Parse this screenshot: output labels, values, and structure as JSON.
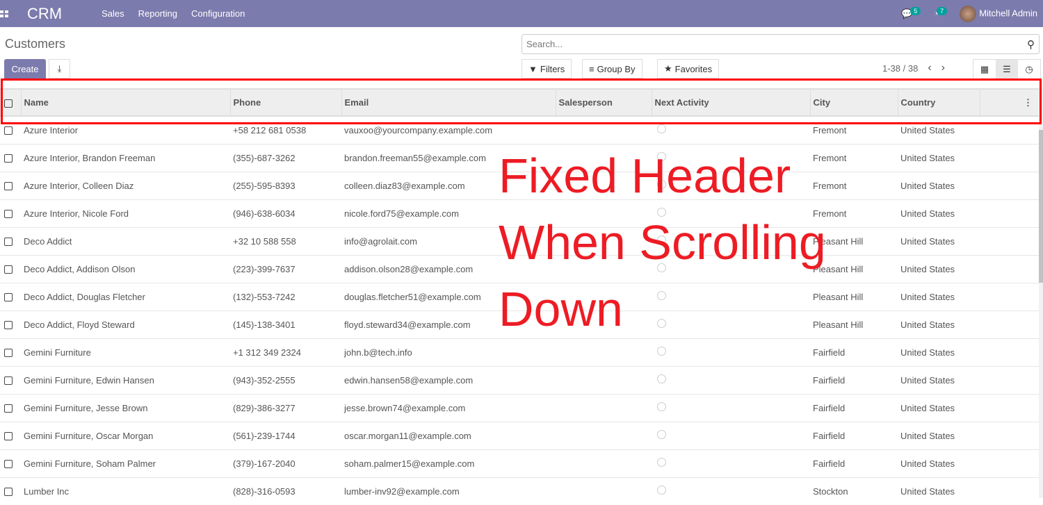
{
  "nav": {
    "brand": "CRM",
    "menu": [
      "Sales",
      "Reporting",
      "Configuration"
    ],
    "messages_count": "5",
    "activities_count": "7",
    "user": "Mitchell Admin"
  },
  "page": {
    "title": "Customers",
    "create": "Create",
    "search_placeholder": "Search...",
    "filters": "Filters",
    "group_by": "Group By",
    "favorites": "Favorites",
    "pager": "1-38 / 38"
  },
  "columns": [
    "Name",
    "Phone",
    "Email",
    "Salesperson",
    "Next Activity",
    "City",
    "Country"
  ],
  "rows": [
    [
      "Azure Interior",
      "+58 212 681 0538",
      "vauxoo@yourcompany.example.com",
      "",
      "",
      "Fremont",
      "United States"
    ],
    [
      "Azure Interior, Brandon Freeman",
      "(355)-687-3262",
      "brandon.freeman55@example.com",
      "",
      "",
      "Fremont",
      "United States"
    ],
    [
      "Azure Interior, Colleen Diaz",
      "(255)-595-8393",
      "colleen.diaz83@example.com",
      "",
      "",
      "Fremont",
      "United States"
    ],
    [
      "Azure Interior, Nicole Ford",
      "(946)-638-6034",
      "nicole.ford75@example.com",
      "",
      "",
      "Fremont",
      "United States"
    ],
    [
      "Deco Addict",
      "+32 10 588 558",
      "info@agrolait.com",
      "",
      "",
      "Pleasant Hill",
      "United States"
    ],
    [
      "Deco Addict, Addison Olson",
      "(223)-399-7637",
      "addison.olson28@example.com",
      "",
      "",
      "Pleasant Hill",
      "United States"
    ],
    [
      "Deco Addict, Douglas Fletcher",
      "(132)-553-7242",
      "douglas.fletcher51@example.com",
      "",
      "",
      "Pleasant Hill",
      "United States"
    ],
    [
      "Deco Addict, Floyd Steward",
      "(145)-138-3401",
      "floyd.steward34@example.com",
      "",
      "",
      "Pleasant Hill",
      "United States"
    ],
    [
      "Gemini Furniture",
      "+1 312 349 2324",
      "john.b@tech.info",
      "",
      "",
      "Fairfield",
      "United States"
    ],
    [
      "Gemini Furniture, Edwin Hansen",
      "(943)-352-2555",
      "edwin.hansen58@example.com",
      "",
      "",
      "Fairfield",
      "United States"
    ],
    [
      "Gemini Furniture, Jesse Brown",
      "(829)-386-3277",
      "jesse.brown74@example.com",
      "",
      "",
      "Fairfield",
      "United States"
    ],
    [
      "Gemini Furniture, Oscar Morgan",
      "(561)-239-1744",
      "oscar.morgan11@example.com",
      "",
      "",
      "Fairfield",
      "United States"
    ],
    [
      "Gemini Furniture, Soham Palmer",
      "(379)-167-2040",
      "soham.palmer15@example.com",
      "",
      "",
      "Fairfield",
      "United States"
    ],
    [
      "Lumber Inc",
      "(828)-316-0593",
      "lumber-inv92@example.com",
      "",
      "",
      "Stockton",
      "United States"
    ]
  ],
  "annotation": [
    "Fixed Header",
    "When Scrolling",
    "Down"
  ],
  "colors": {
    "brand": "#7c7bad",
    "badge": "#00a09d",
    "annotation": "#ed1c24"
  }
}
